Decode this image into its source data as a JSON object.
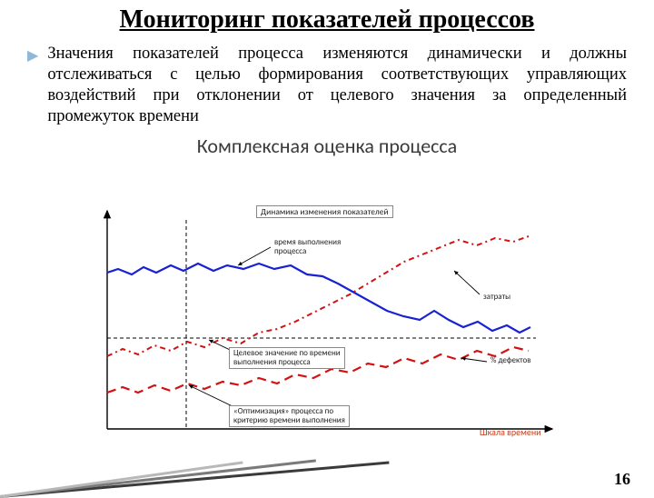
{
  "title": "Мониторинг показателей процессов",
  "body": "Значения показателей процесса изменяются динамически и должны отслеживаться с целью формирования соответствующих управляющих воздействий при отклонении от целевого значения за определенный промежуток времени",
  "subtitle": "Комплексная оценка процесса",
  "page_number": "16",
  "chart": {
    "bg": "#ffffff",
    "axis_color": "#000000",
    "dash_color": "#000000",
    "x_axis_label": "Шкала времени",
    "x_axis_label_color": "#c04020",
    "legend_box": "Динамика изменения показателей",
    "labels": {
      "time_exec": "время выполнения\nпроцесса",
      "costs": "затраты",
      "target": "Целевое значение по времени\nвыполнения процесса",
      "defects": "% дефектов",
      "optimize": "«Оптимизация» процесса по\nкритерию времени выполнения"
    },
    "vline_x": 95,
    "hline_y": 148,
    "series": {
      "time_exec": {
        "color": "#1822d2",
        "width": 2.2,
        "dash": "",
        "points": [
          [
            8,
            76
          ],
          [
            20,
            72
          ],
          [
            35,
            78
          ],
          [
            48,
            70
          ],
          [
            62,
            76
          ],
          [
            78,
            68
          ],
          [
            92,
            74
          ],
          [
            108,
            66
          ],
          [
            125,
            74
          ],
          [
            140,
            68
          ],
          [
            158,
            72
          ],
          [
            175,
            66
          ],
          [
            192,
            72
          ],
          [
            210,
            68
          ],
          [
            228,
            78
          ],
          [
            245,
            80
          ],
          [
            262,
            88
          ],
          [
            280,
            98
          ],
          [
            298,
            108
          ],
          [
            316,
            118
          ],
          [
            334,
            124
          ],
          [
            352,
            128
          ],
          [
            368,
            118
          ],
          [
            384,
            128
          ],
          [
            400,
            136
          ],
          [
            416,
            130
          ],
          [
            432,
            140
          ],
          [
            448,
            134
          ],
          [
            462,
            142
          ],
          [
            474,
            136
          ]
        ]
      },
      "costs": {
        "color": "#d21212",
        "width": 2,
        "dash": "6 4 2 4",
        "points": [
          [
            8,
            168
          ],
          [
            25,
            160
          ],
          [
            42,
            166
          ],
          [
            60,
            156
          ],
          [
            78,
            162
          ],
          [
            96,
            152
          ],
          [
            115,
            158
          ],
          [
            135,
            148
          ],
          [
            155,
            154
          ],
          [
            175,
            142
          ],
          [
            195,
            138
          ],
          [
            215,
            130
          ],
          [
            235,
            120
          ],
          [
            255,
            110
          ],
          [
            275,
            100
          ],
          [
            295,
            88
          ],
          [
            315,
            76
          ],
          [
            335,
            64
          ],
          [
            355,
            56
          ],
          [
            375,
            48
          ],
          [
            395,
            40
          ],
          [
            415,
            46
          ],
          [
            435,
            38
          ],
          [
            455,
            42
          ],
          [
            472,
            36
          ]
        ]
      },
      "defects": {
        "color": "#d21212",
        "width": 2.2,
        "dash": "10 6",
        "points": [
          [
            8,
            208
          ],
          [
            25,
            202
          ],
          [
            42,
            208
          ],
          [
            60,
            200
          ],
          [
            78,
            206
          ],
          [
            96,
            198
          ],
          [
            115,
            204
          ],
          [
            135,
            196
          ],
          [
            155,
            200
          ],
          [
            175,
            192
          ],
          [
            195,
            198
          ],
          [
            215,
            188
          ],
          [
            235,
            192
          ],
          [
            255,
            182
          ],
          [
            275,
            186
          ],
          [
            295,
            176
          ],
          [
            315,
            180
          ],
          [
            335,
            170
          ],
          [
            355,
            176
          ],
          [
            375,
            166
          ],
          [
            395,
            172
          ],
          [
            415,
            162
          ],
          [
            435,
            168
          ],
          [
            455,
            158
          ],
          [
            472,
            162
          ]
        ]
      }
    }
  },
  "decoration": {
    "colors": [
      "#3b3b3b",
      "#7a7a7a",
      "#b8b8b8"
    ]
  }
}
